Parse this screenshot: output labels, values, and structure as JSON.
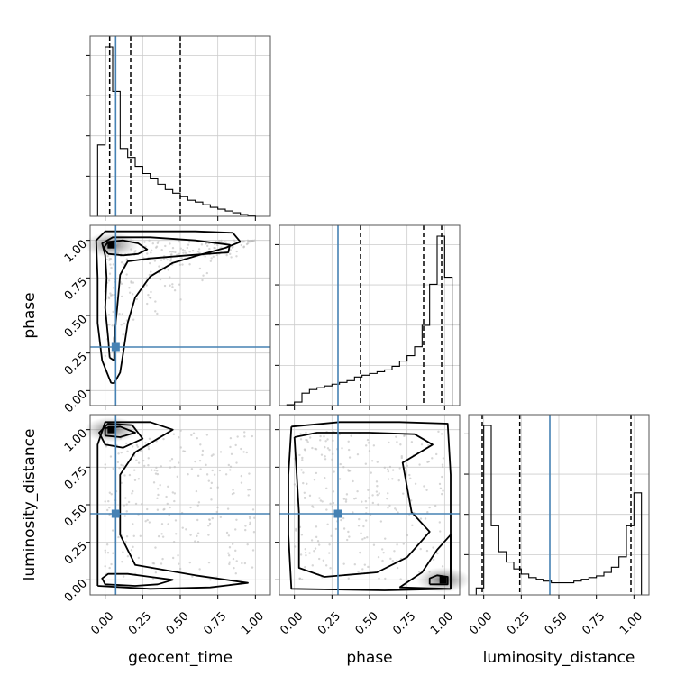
{
  "chart_data": {
    "type": "corner",
    "parameters": [
      "geocent_time",
      "phase",
      "luminosity_distance"
    ],
    "truths": [
      0.07,
      0.29,
      0.44
    ],
    "truth_color": "#4682b4",
    "tick_values": [
      0.0,
      0.25,
      0.5,
      0.75,
      1.0
    ],
    "tick_labels": [
      "0.00",
      "0.25",
      "0.50",
      "0.75",
      "1.00"
    ],
    "marginals": [
      {
        "parameter": "geocent_time",
        "xlim": [
          -0.1,
          1.1
        ],
        "bin_edges": [
          -0.05,
          0.0,
          0.05,
          0.1,
          0.15,
          0.2,
          0.25,
          0.3,
          0.35,
          0.4,
          0.45,
          0.5,
          0.55,
          0.6,
          0.65,
          0.7,
          0.75,
          0.8,
          0.85,
          0.9,
          0.95,
          1.0
        ],
        "density": [
          0.4,
          0.95,
          0.7,
          0.38,
          0.33,
          0.28,
          0.24,
          0.21,
          0.18,
          0.15,
          0.13,
          0.11,
          0.09,
          0.08,
          0.065,
          0.05,
          0.04,
          0.03,
          0.02,
          0.01,
          0.005
        ],
        "quantile_lines": [
          0.03,
          0.17,
          0.5
        ]
      },
      {
        "parameter": "phase",
        "xlim": [
          -0.1,
          1.1
        ],
        "bin_edges": [
          -0.05,
          0.0,
          0.05,
          0.1,
          0.15,
          0.2,
          0.25,
          0.3,
          0.35,
          0.4,
          0.45,
          0.5,
          0.55,
          0.6,
          0.65,
          0.7,
          0.75,
          0.8,
          0.85,
          0.9,
          0.95,
          1.0,
          1.05
        ],
        "density": [
          0.005,
          0.02,
          0.07,
          0.09,
          0.1,
          0.11,
          0.12,
          0.13,
          0.14,
          0.16,
          0.17,
          0.18,
          0.19,
          0.2,
          0.22,
          0.25,
          0.28,
          0.33,
          0.45,
          0.68,
          0.95,
          0.72
        ],
        "quantile_lines": [
          0.44,
          0.86,
          0.98
        ]
      },
      {
        "parameter": "luminosity_distance",
        "xlim": [
          -0.1,
          1.1
        ],
        "bin_edges": [
          -0.05,
          0.0,
          0.05,
          0.1,
          0.15,
          0.2,
          0.25,
          0.3,
          0.35,
          0.4,
          0.45,
          0.5,
          0.55,
          0.6,
          0.65,
          0.7,
          0.75,
          0.8,
          0.85,
          0.9,
          0.95,
          1.0,
          1.05
        ],
        "density": [
          0.04,
          0.98,
          0.4,
          0.25,
          0.19,
          0.15,
          0.12,
          0.1,
          0.09,
          0.08,
          0.07,
          0.07,
          0.07,
          0.08,
          0.09,
          0.1,
          0.11,
          0.13,
          0.16,
          0.22,
          0.4,
          0.59
        ],
        "quantile_lines": [
          -0.01,
          0.24,
          0.98
        ]
      }
    ],
    "joint": [
      {
        "x_parameter": "geocent_time",
        "y_parameter": "phase",
        "xlim": [
          -0.1,
          1.1
        ],
        "ylim": [
          -0.1,
          1.1
        ],
        "peak": [
          0.04,
          0.97
        ],
        "contours": [
          [
            [
              0.02,
              0.91
            ],
            [
              0.12,
              0.9
            ],
            [
              0.22,
              0.91
            ],
            [
              0.28,
              0.94
            ],
            [
              0.22,
              0.98
            ],
            [
              0.12,
              1.0
            ],
            [
              0.02,
              0.99
            ],
            [
              -0.01,
              0.95
            ],
            [
              0.02,
              0.91
            ]
          ],
          [
            [
              0.03,
              0.22
            ],
            [
              0.06,
              0.2
            ],
            [
              0.06,
              0.35
            ],
            [
              0.08,
              0.55
            ],
            [
              0.1,
              0.77
            ],
            [
              0.15,
              0.86
            ],
            [
              0.3,
              0.88
            ],
            [
              0.55,
              0.9
            ],
            [
              0.82,
              0.92
            ],
            [
              0.83,
              0.97
            ],
            [
              0.6,
              1.0
            ],
            [
              0.3,
              1.02
            ],
            [
              0.05,
              1.02
            ],
            [
              -0.02,
              0.98
            ],
            [
              0.0,
              0.9
            ],
            [
              0.01,
              0.75
            ],
            [
              0.0,
              0.55
            ],
            [
              0.02,
              0.35
            ],
            [
              0.03,
              0.22
            ]
          ],
          [
            [
              0.04,
              0.05
            ],
            [
              0.06,
              0.05
            ],
            [
              0.1,
              0.12
            ],
            [
              0.12,
              0.25
            ],
            [
              0.15,
              0.45
            ],
            [
              0.2,
              0.62
            ],
            [
              0.3,
              0.76
            ],
            [
              0.45,
              0.85
            ],
            [
              0.62,
              0.9
            ],
            [
              0.8,
              0.95
            ],
            [
              0.9,
              0.99
            ],
            [
              0.85,
              1.05
            ],
            [
              0.6,
              1.06
            ],
            [
              0.3,
              1.06
            ],
            [
              0.0,
              1.06
            ],
            [
              -0.06,
              1.0
            ],
            [
              -0.05,
              0.75
            ],
            [
              -0.05,
              0.45
            ],
            [
              -0.02,
              0.2
            ],
            [
              0.04,
              0.05
            ]
          ]
        ]
      },
      {
        "x_parameter": "geocent_time",
        "y_parameter": "luminosity_distance",
        "xlim": [
          -0.1,
          1.1
        ],
        "ylim": [
          -0.1,
          1.1
        ],
        "peak": [
          0.04,
          1.0
        ],
        "contours": [
          [
            [
              0.0,
              0.96
            ],
            [
              0.1,
              0.95
            ],
            [
              0.2,
              0.98
            ],
            [
              0.1,
              1.02
            ],
            [
              0.0,
              1.01
            ],
            [
              0.0,
              0.96
            ]
          ],
          [
            [
              0.0,
              -0.03
            ],
            [
              0.2,
              -0.04
            ],
            [
              0.35,
              -0.03
            ],
            [
              0.45,
              0.0
            ],
            [
              0.3,
              0.02
            ],
            [
              0.15,
              0.04
            ],
            [
              0.02,
              0.04
            ],
            [
              -0.02,
              0.01
            ],
            [
              0.0,
              -0.03
            ]
          ],
          [
            [
              0.0,
              0.9
            ],
            [
              0.12,
              0.88
            ],
            [
              0.25,
              0.94
            ],
            [
              0.18,
              1.03
            ],
            [
              0.02,
              1.04
            ],
            [
              -0.04,
              0.98
            ],
            [
              0.0,
              0.9
            ]
          ],
          [
            [
              -0.05,
              -0.04
            ],
            [
              0.3,
              -0.06
            ],
            [
              0.7,
              -0.05
            ],
            [
              0.95,
              -0.02
            ],
            [
              0.6,
              0.03
            ],
            [
              0.2,
              0.1
            ],
            [
              0.1,
              0.3
            ],
            [
              0.1,
              0.7
            ],
            [
              0.2,
              0.85
            ],
            [
              0.45,
              1.0
            ],
            [
              0.3,
              1.05
            ],
            [
              0.0,
              1.05
            ],
            [
              -0.05,
              0.9
            ],
            [
              -0.05,
              0.5
            ],
            [
              -0.05,
              0.1
            ],
            [
              -0.05,
              -0.04
            ]
          ]
        ]
      },
      {
        "x_parameter": "phase",
        "y_parameter": "luminosity_distance",
        "xlim": [
          -0.1,
          1.1
        ],
        "ylim": [
          -0.1,
          1.1
        ],
        "peak": [
          0.99,
          0.0
        ],
        "contours": [
          [
            [
              0.9,
              -0.03
            ],
            [
              1.02,
              -0.03
            ],
            [
              1.02,
              0.02
            ],
            [
              0.95,
              0.03
            ],
            [
              0.9,
              0.01
            ],
            [
              0.9,
              -0.03
            ]
          ],
          [
            [
              0.7,
              -0.05
            ],
            [
              1.04,
              -0.06
            ],
            [
              1.04,
              0.3
            ],
            [
              0.95,
              0.2
            ],
            [
              0.85,
              0.05
            ],
            [
              0.7,
              -0.05
            ]
          ],
          [
            [
              -0.02,
              1.02
            ],
            [
              0.3,
              1.05
            ],
            [
              0.7,
              1.05
            ],
            [
              1.02,
              1.04
            ],
            [
              1.04,
              0.7
            ],
            [
              1.04,
              0.2
            ],
            [
              1.04,
              -0.06
            ],
            [
              0.6,
              -0.07
            ],
            [
              -0.02,
              -0.06
            ],
            [
              -0.04,
              0.3
            ],
            [
              -0.04,
              0.7
            ],
            [
              -0.02,
              1.02
            ]
          ],
          [
            [
              0.0,
              0.95
            ],
            [
              0.15,
              0.98
            ],
            [
              0.5,
              0.98
            ],
            [
              0.8,
              0.97
            ],
            [
              0.92,
              0.9
            ],
            [
              0.72,
              0.78
            ],
            [
              0.78,
              0.45
            ],
            [
              0.9,
              0.32
            ],
            [
              0.75,
              0.15
            ],
            [
              0.55,
              0.05
            ],
            [
              0.2,
              0.02
            ],
            [
              0.03,
              0.08
            ],
            [
              0.03,
              0.45
            ],
            [
              0.0,
              0.95
            ]
          ]
        ]
      }
    ]
  }
}
